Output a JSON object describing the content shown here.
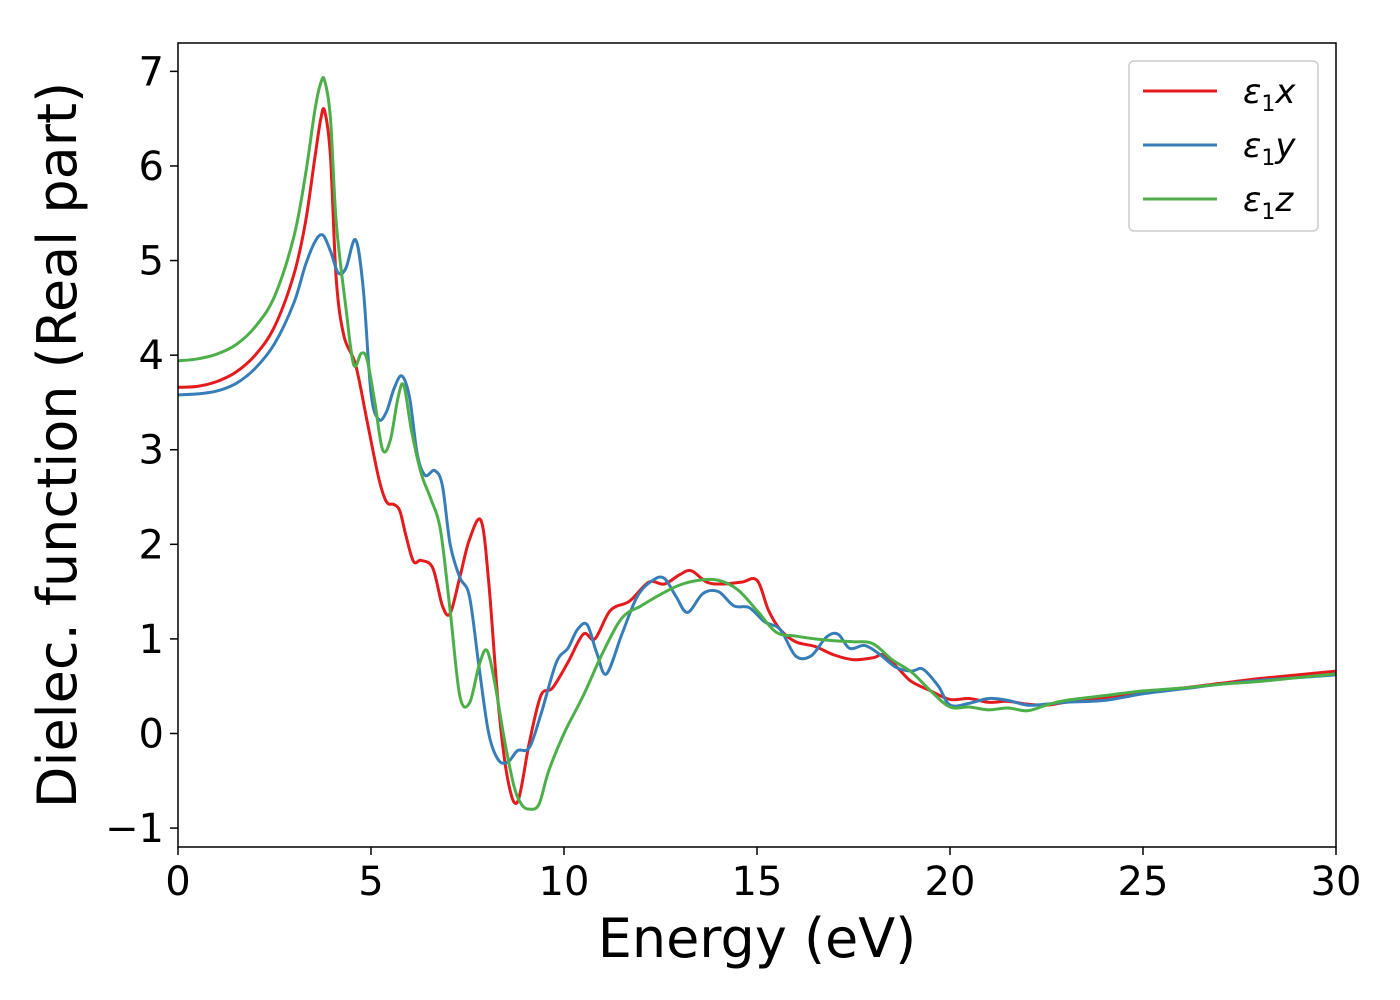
{
  "chart_data": {
    "type": "line",
    "xlabel": "Energy (eV)",
    "ylabel": "Dielec. function (Real part)",
    "xlim": [
      0,
      30
    ],
    "ylim": [
      -1.2,
      7.3
    ],
    "xticks": [
      0,
      5,
      10,
      15,
      20,
      25,
      30
    ],
    "yticks": [
      -1,
      0,
      1,
      2,
      3,
      4,
      5,
      6,
      7
    ],
    "ytick_labels": [
      "−1",
      "0",
      "1",
      "2",
      "3",
      "4",
      "5",
      "6",
      "7"
    ],
    "grid": false,
    "legend_position": "top-right",
    "series": [
      {
        "name": "ε1x",
        "base": "ε",
        "sub": "1",
        "var": "x",
        "color": "#e41a1c",
        "x": [
          0,
          0.5,
          1,
          1.5,
          2,
          2.5,
          3,
          3.3,
          3.55,
          3.7,
          3.8,
          3.95,
          4.1,
          4.3,
          4.6,
          4.9,
          5.2,
          5.4,
          5.6,
          5.75,
          5.9,
          6.1,
          6.3,
          6.6,
          6.85,
          7.05,
          7.3,
          7.55,
          7.85,
          8.05,
          8.3,
          8.55,
          8.8,
          9.1,
          9.4,
          9.7,
          10.1,
          10.5,
          10.8,
          11.2,
          11.7,
          12.2,
          12.6,
          13.0,
          13.3,
          13.7,
          14.1,
          14.6,
          15.0,
          15.3,
          15.6,
          16.0,
          16.5,
          17.0,
          17.5,
          18.0,
          18.3,
          18.7,
          19.0,
          19.5,
          20.0,
          20.5,
          21.0,
          21.5,
          22.0,
          22.5,
          23.0,
          24.0,
          25.0,
          26.0,
          27.0,
          28.0,
          29.0,
          30.0
        ],
        "y": [
          3.66,
          3.67,
          3.72,
          3.82,
          4.0,
          4.3,
          4.85,
          5.4,
          6.1,
          6.5,
          6.58,
          6.1,
          4.8,
          4.2,
          3.9,
          3.3,
          2.7,
          2.45,
          2.42,
          2.35,
          2.1,
          1.82,
          1.83,
          1.75,
          1.35,
          1.27,
          1.65,
          2.05,
          2.25,
          1.6,
          0.3,
          -0.5,
          -0.72,
          -0.1,
          0.4,
          0.48,
          0.75,
          1.05,
          1.0,
          1.3,
          1.4,
          1.6,
          1.58,
          1.68,
          1.72,
          1.6,
          1.58,
          1.6,
          1.62,
          1.3,
          1.1,
          0.97,
          0.92,
          0.83,
          0.78,
          0.8,
          0.83,
          0.67,
          0.55,
          0.45,
          0.36,
          0.37,
          0.33,
          0.34,
          0.31,
          0.3,
          0.33,
          0.38,
          0.44,
          0.48,
          0.53,
          0.58,
          0.62,
          0.66
        ]
      },
      {
        "name": "ε1y",
        "base": "ε",
        "sub": "1",
        "var": "y",
        "color": "#377eb8",
        "x": [
          0,
          0.5,
          1,
          1.5,
          2,
          2.5,
          3,
          3.3,
          3.55,
          3.75,
          3.95,
          4.15,
          4.35,
          4.6,
          4.8,
          5.0,
          5.2,
          5.4,
          5.6,
          5.8,
          6.0,
          6.2,
          6.4,
          6.65,
          6.85,
          7.05,
          7.3,
          7.55,
          7.8,
          8.05,
          8.3,
          8.55,
          8.8,
          9.1,
          9.4,
          9.8,
          10.1,
          10.35,
          10.6,
          10.85,
          11.1,
          11.5,
          11.9,
          12.3,
          12.6,
          12.9,
          13.2,
          13.6,
          14.0,
          14.4,
          14.8,
          15.2,
          15.6,
          16.0,
          16.4,
          16.8,
          17.1,
          17.4,
          17.8,
          18.2,
          18.6,
          19.0,
          19.3,
          19.7,
          20.0,
          20.5,
          21.0,
          21.5,
          22.0,
          22.5,
          23.0,
          24.0,
          25.0,
          26.0,
          27.0,
          28.0,
          29.0,
          30.0
        ],
        "y": [
          3.58,
          3.59,
          3.62,
          3.7,
          3.86,
          4.12,
          4.55,
          4.95,
          5.2,
          5.27,
          5.1,
          4.87,
          4.92,
          5.22,
          4.7,
          3.6,
          3.32,
          3.4,
          3.65,
          3.78,
          3.55,
          2.95,
          2.73,
          2.78,
          2.62,
          2.0,
          1.65,
          1.45,
          0.7,
          0.0,
          -0.28,
          -0.3,
          -0.18,
          -0.15,
          0.2,
          0.75,
          0.9,
          1.1,
          1.15,
          0.85,
          0.63,
          1.05,
          1.45,
          1.62,
          1.64,
          1.45,
          1.28,
          1.48,
          1.5,
          1.35,
          1.33,
          1.18,
          1.1,
          0.82,
          0.82,
          1.02,
          1.05,
          0.9,
          0.93,
          0.83,
          0.7,
          0.66,
          0.68,
          0.5,
          0.3,
          0.32,
          0.37,
          0.35,
          0.3,
          0.31,
          0.33,
          0.35,
          0.42,
          0.47,
          0.52,
          0.56,
          0.59,
          0.62
        ]
      },
      {
        "name": "ε1z",
        "base": "ε",
        "sub": "1",
        "var": "z",
        "color": "#4daf4a",
        "x": [
          0,
          0.5,
          1,
          1.5,
          2,
          2.5,
          3,
          3.3,
          3.55,
          3.7,
          3.8,
          3.95,
          4.1,
          4.35,
          4.55,
          4.75,
          4.9,
          5.1,
          5.3,
          5.5,
          5.7,
          5.85,
          6.05,
          6.3,
          6.55,
          6.8,
          7.05,
          7.3,
          7.55,
          7.8,
          8.0,
          8.2,
          8.45,
          8.7,
          8.9,
          9.1,
          9.35,
          9.6,
          10.0,
          10.5,
          11.0,
          11.5,
          12.0,
          12.5,
          13.0,
          13.5,
          14.0,
          14.5,
          15.0,
          15.5,
          16.0,
          16.5,
          17.0,
          17.5,
          18.0,
          18.5,
          19.0,
          19.5,
          20.0,
          20.5,
          21.0,
          21.5,
          22.0,
          22.5,
          23.0,
          24.0,
          25.0,
          26.0,
          27.0,
          28.0,
          29.0,
          30.0
        ],
        "y": [
          3.94,
          3.96,
          4.01,
          4.11,
          4.3,
          4.62,
          5.25,
          5.9,
          6.6,
          6.88,
          6.9,
          6.5,
          5.4,
          4.5,
          3.9,
          4.02,
          3.95,
          3.5,
          3.0,
          3.1,
          3.55,
          3.68,
          3.2,
          2.75,
          2.48,
          2.15,
          1.3,
          0.4,
          0.32,
          0.72,
          0.88,
          0.55,
          -0.05,
          -0.55,
          -0.75,
          -0.8,
          -0.75,
          -0.4,
          0.0,
          0.4,
          0.85,
          1.22,
          1.35,
          1.47,
          1.57,
          1.62,
          1.62,
          1.52,
          1.3,
          1.07,
          1.03,
          1.0,
          0.98,
          0.97,
          0.95,
          0.78,
          0.65,
          0.45,
          0.28,
          0.28,
          0.25,
          0.27,
          0.24,
          0.3,
          0.35,
          0.4,
          0.45,
          0.48,
          0.52,
          0.55,
          0.59,
          0.63
        ]
      }
    ]
  }
}
